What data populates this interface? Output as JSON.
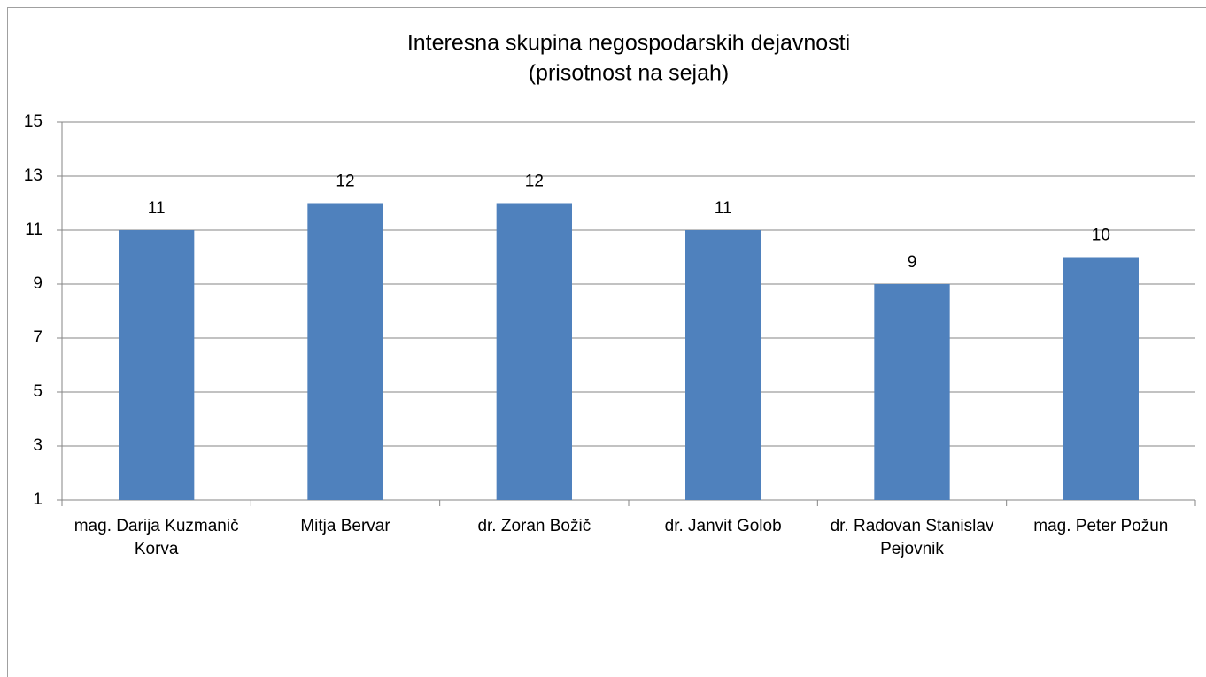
{
  "chart_data": {
    "type": "bar",
    "title": "Interesna skupina negospodarskih dejavnosti",
    "subtitle": "(prisotnost na sejah)",
    "categories": [
      "mag. Darija Kuzmanič Korva",
      "Mitja Bervar",
      "dr. Zoran Božič",
      "dr. Janvit Golob",
      "dr. Radovan Stanislav Pejovnik",
      "mag. Peter Požun"
    ],
    "values": [
      11,
      12,
      12,
      11,
      9,
      10
    ],
    "color": "#4f81bd",
    "ylim": [
      1,
      15
    ],
    "yticks": [
      1,
      3,
      5,
      7,
      9,
      11,
      13,
      15
    ],
    "grid": true
  }
}
